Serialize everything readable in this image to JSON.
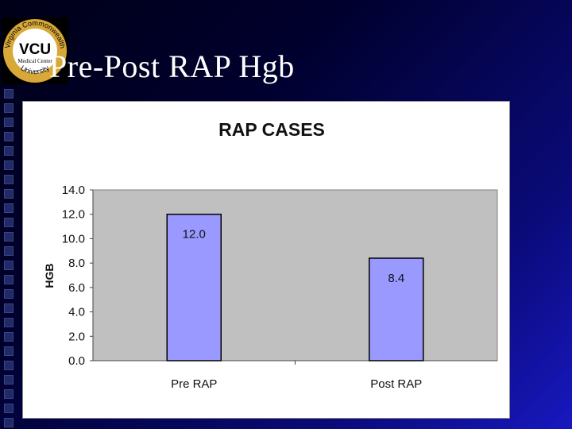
{
  "slide": {
    "title": "Pre-Post RAP Hgb"
  },
  "logo": {
    "main_text": "VCU",
    "sub_text": "Medical Center",
    "ring_top": "Virginia Commonwealth",
    "ring_bottom": "University"
  },
  "colors": {
    "bar_fill": "#9999ff",
    "plot_bg": "#c0c0c0",
    "logo_gold": "#d8a838"
  },
  "chart_data": {
    "type": "bar",
    "title": "RAP CASES",
    "ylabel": "HGB",
    "xlabel": "",
    "categories": [
      "Pre RAP",
      "Post RAP"
    ],
    "values": [
      12.0,
      8.4
    ],
    "data_labels": [
      "12.0",
      "8.4"
    ],
    "ylim": [
      0,
      14
    ],
    "yticks": [
      "0.0",
      "2.0",
      "4.0",
      "6.0",
      "8.0",
      "10.0",
      "12.0",
      "14.0"
    ],
    "grid": false,
    "legend": "none"
  }
}
